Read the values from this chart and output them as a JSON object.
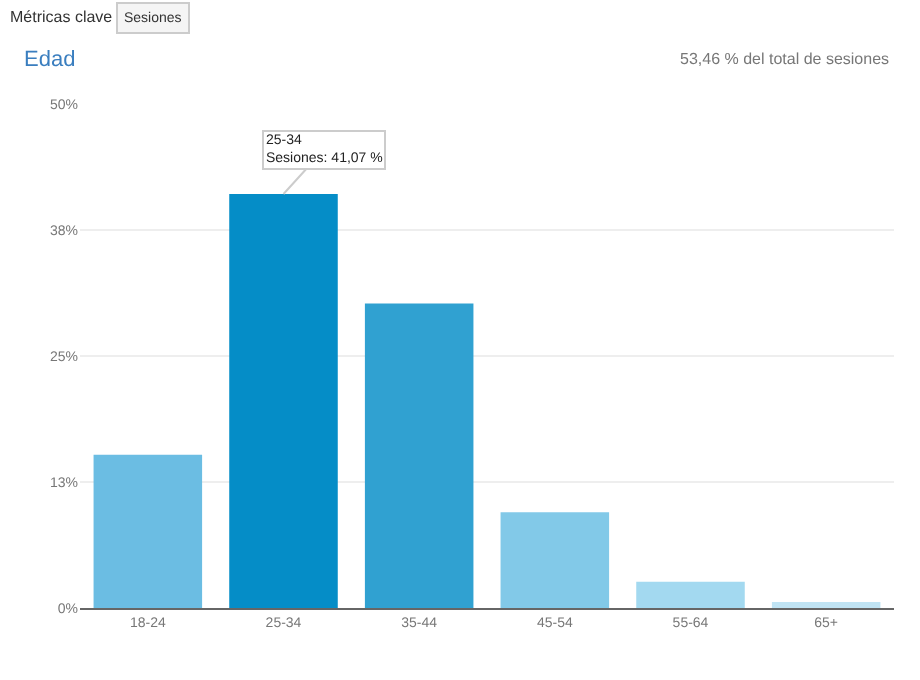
{
  "chart_data": {
    "type": "bar",
    "title": "Edad",
    "subtitle": "53,46 % del total de sesiones",
    "categories": [
      "18-24",
      "25-34",
      "35-44",
      "45-54",
      "55-64",
      "65+"
    ],
    "values": [
      15.2,
      41.07,
      30.2,
      9.5,
      2.6,
      0.6
    ],
    "colors": [
      "#6bbde3",
      "#058dc7",
      "#30a1d1",
      "#82c9e8",
      "#a3d9f0",
      "#c0e4f4"
    ],
    "ylim": [
      0,
      50
    ],
    "yticks": [
      {
        "value": 0,
        "label": "0%"
      },
      {
        "value": 12.5,
        "label": "13%"
      },
      {
        "value": 25,
        "label": "25%"
      },
      {
        "value": 37.5,
        "label": "38%"
      },
      {
        "value": 50,
        "label": "50%"
      }
    ],
    "grid": "y",
    "annotations": [
      "Métricas clave",
      "Sesiones",
      {
        "text": "25-34\nSesiones: 41,07 %",
        "x": "25-34",
        "y": 41.07
      }
    ]
  }
}
